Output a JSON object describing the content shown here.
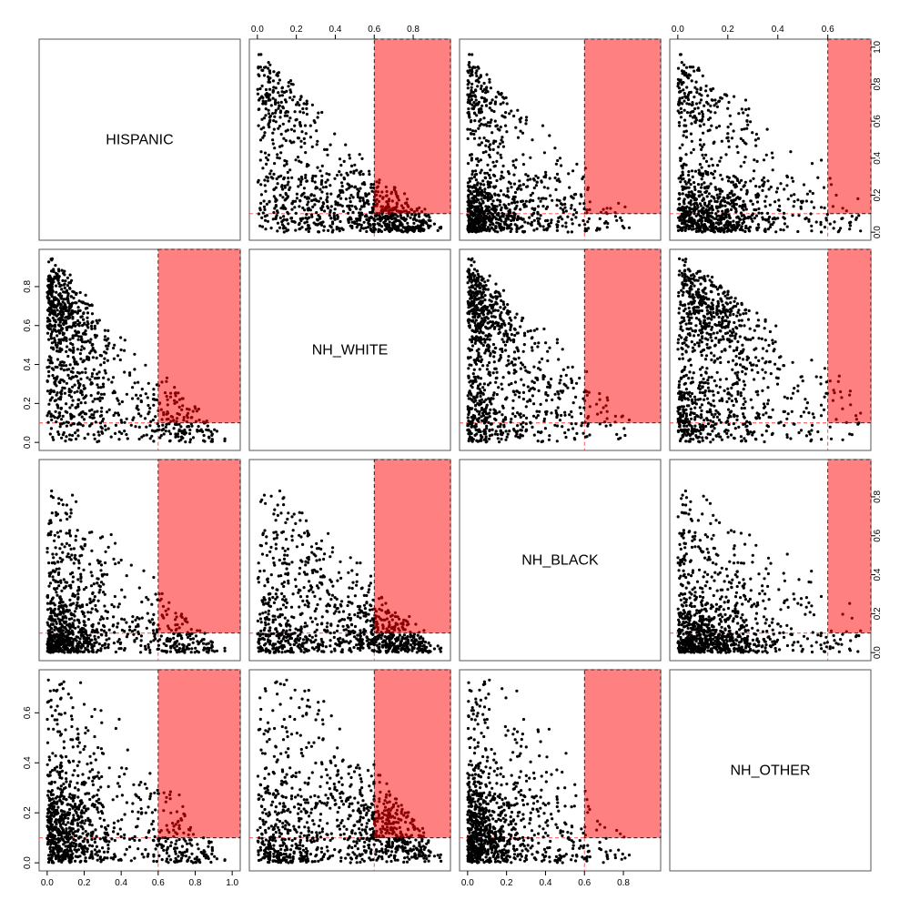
{
  "chart_data": {
    "type": "scatter",
    "variables": [
      "HISPANIC",
      "NH_WHITE",
      "NH_BLACK",
      "NH_OTHER"
    ],
    "axis_ranges": {
      "HISPANIC": [
        0.0,
        1.0
      ],
      "NH_WHITE": [
        0.0,
        0.95
      ],
      "NH_BLACK": [
        0.0,
        0.95
      ],
      "NH_OTHER": [
        0.0,
        0.74
      ]
    },
    "tick_labels": {
      "HISPANIC": [
        "0.0",
        "0.2",
        "0.4",
        "0.6",
        "0.8",
        "1.0"
      ],
      "NH_WHITE": [
        "0.0",
        "0.2",
        "0.4",
        "0.6",
        "0.8"
      ],
      "NH_BLACK": [
        "0.0",
        "0.2",
        "0.4",
        "0.6",
        "0.8"
      ],
      "NH_OTHER": [
        "0.0",
        "0.2",
        "0.4",
        "0.6"
      ]
    },
    "threshold": {
      "x_min": 0.6,
      "y_min": 0.1
    },
    "highlight_color": "#ff8080",
    "threshold_line_color": "#ff4040",
    "point_color": "#000000",
    "highlight_point_color": "#8b0000",
    "grid": false,
    "n_points_per_panel": 1000
  }
}
